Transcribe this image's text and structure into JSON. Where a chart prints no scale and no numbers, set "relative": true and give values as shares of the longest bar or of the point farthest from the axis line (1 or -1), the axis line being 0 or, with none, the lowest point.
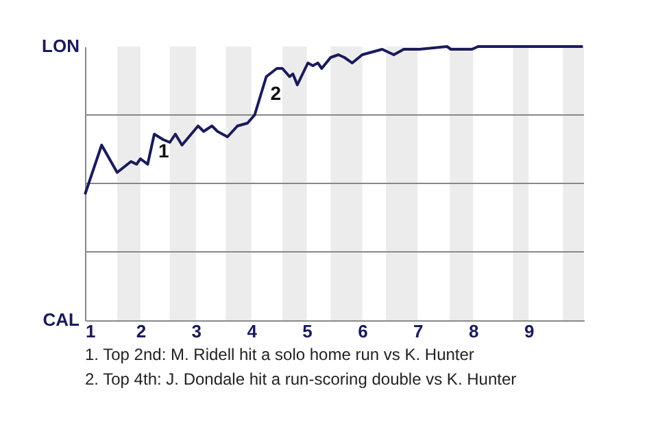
{
  "chart_data": {
    "type": "line",
    "x": [
      1.0,
      1.3,
      1.58,
      1.83,
      1.93,
      2.0,
      2.13,
      2.25,
      2.41,
      2.53,
      2.63,
      2.75,
      3.04,
      3.14,
      3.29,
      3.39,
      3.57,
      3.75,
      3.93,
      4.06,
      4.15,
      4.27,
      4.46,
      4.56,
      4.69,
      4.75,
      4.83,
      5.02,
      5.11,
      5.2,
      5.27,
      5.43,
      5.57,
      5.68,
      5.82,
      6.0,
      6.18,
      6.36,
      6.57,
      6.75,
      6.98,
      7.03,
      7.53,
      7.6,
      7.98,
      8.09,
      9.62,
      9.76,
      9.98
    ],
    "series": [
      {
        "color": "#1a1a5c",
        "values": [
          0.46,
          0.64,
          0.54,
          0.58,
          0.57,
          0.59,
          0.57,
          0.68,
          0.66,
          0.65,
          0.68,
          0.64,
          0.71,
          0.69,
          0.71,
          0.69,
          0.67,
          0.71,
          0.72,
          0.75,
          0.81,
          0.89,
          0.92,
          0.92,
          0.89,
          0.9,
          0.86,
          0.94,
          0.93,
          0.94,
          0.92,
          0.96,
          0.97,
          0.96,
          0.94,
          0.97,
          0.98,
          0.99,
          0.97,
          0.99,
          0.99,
          0.99,
          1.0,
          0.99,
          0.99,
          1.0,
          1.0,
          1.0,
          1.0
        ]
      }
    ],
    "xlim": [
      1,
      10
    ],
    "xticks": [
      1,
      2,
      3,
      4,
      5,
      6,
      7,
      8,
      9
    ],
    "relative": true,
    "grid": "y",
    "bands": [
      {
        "axis": "x",
        "from": 1.58,
        "to": 2.0,
        "color": "#ececec"
      },
      {
        "axis": "x",
        "from": 2.53,
        "to": 3.0,
        "color": "#ececec"
      },
      {
        "axis": "x",
        "from": 3.54,
        "to": 4.0,
        "color": "#ececec"
      },
      {
        "axis": "x",
        "from": 4.56,
        "to": 5.0,
        "color": "#ececec"
      },
      {
        "axis": "x",
        "from": 5.43,
        "to": 6.0,
        "color": "#ececec"
      },
      {
        "axis": "x",
        "from": 6.43,
        "to": 7.0,
        "color": "#ececec"
      },
      {
        "axis": "x",
        "from": 7.58,
        "to": 8.0,
        "color": "#ececec"
      },
      {
        "axis": "x",
        "from": 8.72,
        "to": 9.0,
        "color": "#ececec"
      },
      {
        "axis": "x",
        "from": 9.62,
        "to": 10.0,
        "color": "#ececec"
      }
    ],
    "annotations": [
      {
        "text": "1",
        "x": 2.25,
        "y": 0.68
      },
      {
        "text": "2",
        "x": 4.27,
        "y": 0.89
      },
      "LON",
      "CAL",
      "1. Top 2nd: M. Ridell hit a solo home run vs K. Hunter",
      "2. Top 4th: J. Dondale hit a run-scoring double vs K. Hunter"
    ]
  }
}
